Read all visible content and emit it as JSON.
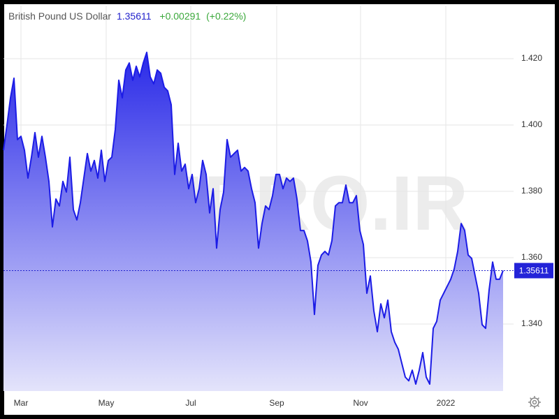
{
  "chart_data": {
    "type": "area",
    "title": "British Pound US Dollar",
    "last": 1.35611,
    "change": "+0.00291",
    "change_pct": "(+0.22%)",
    "watermark": "CMPRO.IR",
    "color": "#1c1ce6",
    "fill_top": "#2a2ae8",
    "fill_bottom": "#e4e4fb",
    "grid": true,
    "xlim": [
      0,
      146
    ],
    "xticks": [
      {
        "value": 5,
        "label": "Mar"
      },
      {
        "value": 29.4,
        "label": "May"
      },
      {
        "value": 53.6,
        "label": "Jul"
      },
      {
        "value": 78.2,
        "label": "Sep"
      },
      {
        "value": 102.2,
        "label": "Nov"
      },
      {
        "value": 126.6,
        "label": "2022"
      }
    ],
    "ylim": [
      1.3198,
      1.436
    ],
    "yticks": [
      {
        "value": 1.34,
        "label": "1.340"
      },
      {
        "value": 1.36,
        "label": "1.360"
      },
      {
        "value": 1.38,
        "label": "1.380"
      },
      {
        "value": 1.4,
        "label": "1.400"
      },
      {
        "value": 1.42,
        "label": "1.420"
      }
    ],
    "values": [
      1.3924,
      1.4,
      1.4082,
      1.4141,
      1.3956,
      1.3966,
      1.3924,
      1.384,
      1.3903,
      1.3977,
      1.3903,
      1.3966,
      1.3903,
      1.383,
      1.3693,
      1.3777,
      1.3756,
      1.383,
      1.3798,
      1.3903,
      1.3745,
      1.3714,
      1.3766,
      1.384,
      1.3914,
      1.3861,
      1.3893,
      1.384,
      1.3924,
      1.383,
      1.3893,
      1.3903,
      1.3987,
      1.4135,
      1.4082,
      1.4166,
      1.4187,
      1.4135,
      1.4177,
      1.4145,
      1.4187,
      1.4219,
      1.4145,
      1.4124,
      1.4166,
      1.4156,
      1.4114,
      1.4103,
      1.4061,
      1.3851,
      1.3945,
      1.3861,
      1.3882,
      1.3808,
      1.3851,
      1.3766,
      1.3808,
      1.3893,
      1.3851,
      1.3735,
      1.3808,
      1.3629,
      1.3745,
      1.3798,
      1.3956,
      1.3903,
      1.3914,
      1.3924,
      1.3861,
      1.3872,
      1.3861,
      1.3808,
      1.3766,
      1.3629,
      1.3703,
      1.3756,
      1.3745,
      1.3787,
      1.3851,
      1.3851,
      1.3808,
      1.384,
      1.383,
      1.384,
      1.3777,
      1.3682,
      1.3682,
      1.3651,
      1.3587,
      1.3429,
      1.3577,
      1.3608,
      1.3619,
      1.3608,
      1.3651,
      1.3756,
      1.3766,
      1.3766,
      1.3819,
      1.3766,
      1.3766,
      1.3787,
      1.3682,
      1.364,
      1.3493,
      1.3545,
      1.344,
      1.3377,
      1.3461,
      1.3419,
      1.3472,
      1.3377,
      1.3345,
      1.3324,
      1.3282,
      1.324,
      1.3229,
      1.3261,
      1.3219,
      1.3261,
      1.3314,
      1.324,
      1.3219,
      1.3387,
      1.3408,
      1.3472,
      1.3493,
      1.3514,
      1.3535,
      1.3566,
      1.3619,
      1.3703,
      1.3682,
      1.3608,
      1.3598,
      1.3545,
      1.3493,
      1.3398,
      1.3387,
      1.3503,
      1.3587,
      1.3535,
      1.3535,
      1.35611
    ]
  }
}
